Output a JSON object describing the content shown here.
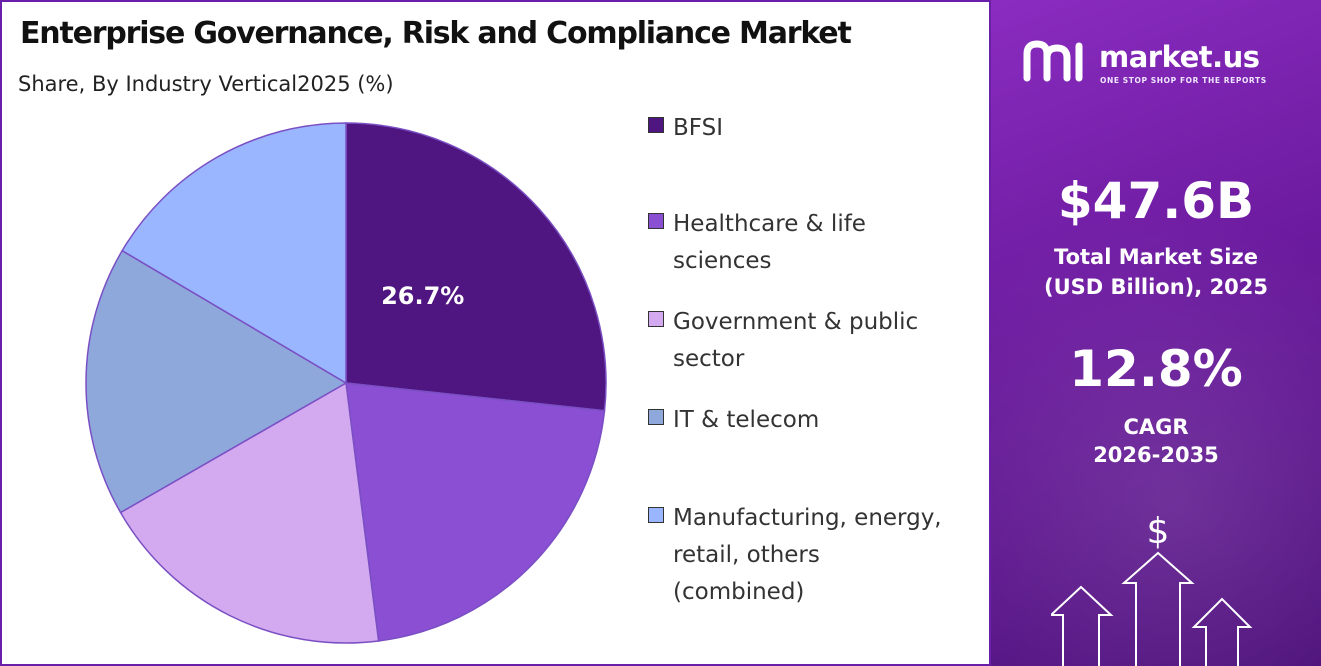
{
  "header": {
    "title": "Enterprise Governance, Risk and Compliance Market",
    "subtitle": "Share, By Industry Vertical2025 (%)"
  },
  "chart_data": {
    "type": "pie",
    "title": "Enterprise Governance, Risk and Compliance Market",
    "subtitle": "Share, By Industry Vertical2025 (%)",
    "unit": "%",
    "slices": [
      {
        "label": "BFSI",
        "value": 26.7,
        "color": "#4f1580",
        "shown_label": "26.7%"
      },
      {
        "label": "Healthcare & life sciences",
        "value": 21.3,
        "color": "#8a4fd3"
      },
      {
        "label": "Government & public sector",
        "value": 18.7,
        "color": "#d3a9ef"
      },
      {
        "label": "IT & telecom",
        "value": 16.8,
        "color": "#8ea8dc"
      },
      {
        "label": "Manufacturing, energy, retail, others (combined)",
        "value": 16.5,
        "color": "#99b6ff"
      }
    ],
    "legend_position": "right"
  },
  "legend": {
    "items": [
      {
        "line1": "BFSI",
        "line2": "",
        "line3": ""
      },
      {
        "line1": "Healthcare & life",
        "line2": "sciences",
        "line3": ""
      },
      {
        "line1": "Government & public",
        "line2": "sector",
        "line3": ""
      },
      {
        "line1": "IT & telecom",
        "line2": "",
        "line3": ""
      },
      {
        "line1": "Manufacturing, energy,",
        "line2": "retail, others",
        "line3": "(combined)"
      }
    ]
  },
  "sidebar": {
    "brand": "market.us",
    "tagline": "ONE STOP SHOP FOR THE REPORTS",
    "market_size_value": "$47.6B",
    "market_size_label_1": "Total Market Size",
    "market_size_label_2": "(USD Billion), 2025",
    "cagr_value": "12.8%",
    "cagr_label_1": "CAGR",
    "cagr_label_2": "2026-2035",
    "dollar_symbol": "$"
  },
  "icons": [
    "market-us-logo-icon",
    "dollar-icon",
    "up-arrow-icon"
  ]
}
